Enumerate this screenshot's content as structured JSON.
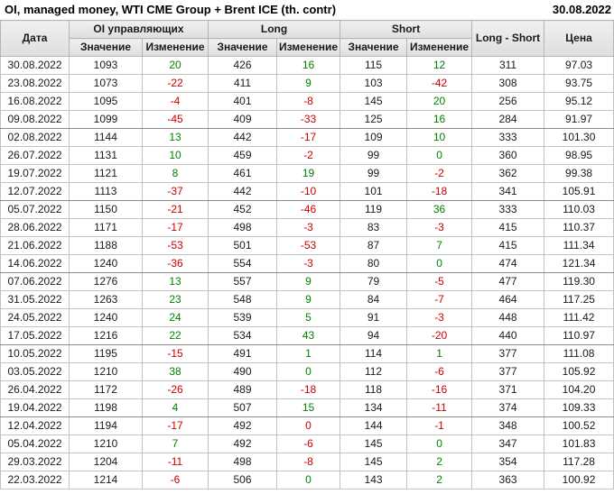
{
  "title": "OI, managed money, WTI CME Group + Brent ICE (th. contr)",
  "report_date": "30.08.2022",
  "colors": {
    "positive_change": "#008000",
    "negative_change": "#cc0000",
    "header_background": "#e8e8e8"
  },
  "table": {
    "header": {
      "date": "Дата",
      "oi_group": "OI управляющих",
      "long_group": "Long",
      "short_group": "Short",
      "value": "Значение",
      "change": "Изменение",
      "long_short": "Long - Short",
      "price": "Цена"
    },
    "rows": [
      {
        "date": "30.08.2022",
        "oi": "1093",
        "oi_chg": "20",
        "oi_chg_sign": "pos",
        "long": "426",
        "long_chg": "16",
        "long_chg_sign": "pos",
        "short": "115",
        "short_chg": "12",
        "short_chg_sign": "pos",
        "long_short": "311",
        "price": "97.03"
      },
      {
        "date": "23.08.2022",
        "oi": "1073",
        "oi_chg": "-22",
        "oi_chg_sign": "neg",
        "long": "411",
        "long_chg": "9",
        "long_chg_sign": "pos",
        "short": "103",
        "short_chg": "-42",
        "short_chg_sign": "neg",
        "long_short": "308",
        "price": "93.75"
      },
      {
        "date": "16.08.2022",
        "oi": "1095",
        "oi_chg": "-4",
        "oi_chg_sign": "neg",
        "long": "401",
        "long_chg": "-8",
        "long_chg_sign": "neg",
        "short": "145",
        "short_chg": "20",
        "short_chg_sign": "pos",
        "long_short": "256",
        "price": "95.12"
      },
      {
        "date": "09.08.2022",
        "oi": "1099",
        "oi_chg": "-45",
        "oi_chg_sign": "neg",
        "long": "409",
        "long_chg": "-33",
        "long_chg_sign": "neg",
        "short": "125",
        "short_chg": "16",
        "short_chg_sign": "pos",
        "long_short": "284",
        "price": "91.97"
      },
      {
        "date": "02.08.2022",
        "oi": "1144",
        "oi_chg": "13",
        "oi_chg_sign": "pos",
        "long": "442",
        "long_chg": "-17",
        "long_chg_sign": "neg",
        "short": "109",
        "short_chg": "10",
        "short_chg_sign": "pos",
        "long_short": "333",
        "price": "101.30"
      },
      {
        "date": "26.07.2022",
        "oi": "1131",
        "oi_chg": "10",
        "oi_chg_sign": "pos",
        "long": "459",
        "long_chg": "-2",
        "long_chg_sign": "neg",
        "short": "99",
        "short_chg": "0",
        "short_chg_sign": "pos",
        "long_short": "360",
        "price": "98.95"
      },
      {
        "date": "19.07.2022",
        "oi": "1121",
        "oi_chg": "8",
        "oi_chg_sign": "pos",
        "long": "461",
        "long_chg": "19",
        "long_chg_sign": "pos",
        "short": "99",
        "short_chg": "-2",
        "short_chg_sign": "neg",
        "long_short": "362",
        "price": "99.38"
      },
      {
        "date": "12.07.2022",
        "oi": "1113",
        "oi_chg": "-37",
        "oi_chg_sign": "neg",
        "long": "442",
        "long_chg": "-10",
        "long_chg_sign": "neg",
        "short": "101",
        "short_chg": "-18",
        "short_chg_sign": "neg",
        "long_short": "341",
        "price": "105.91"
      },
      {
        "date": "05.07.2022",
        "oi": "1150",
        "oi_chg": "-21",
        "oi_chg_sign": "neg",
        "long": "452",
        "long_chg": "-46",
        "long_chg_sign": "neg",
        "short": "119",
        "short_chg": "36",
        "short_chg_sign": "pos",
        "long_short": "333",
        "price": "110.03"
      },
      {
        "date": "28.06.2022",
        "oi": "1171",
        "oi_chg": "-17",
        "oi_chg_sign": "neg",
        "long": "498",
        "long_chg": "-3",
        "long_chg_sign": "neg",
        "short": "83",
        "short_chg": "-3",
        "short_chg_sign": "neg",
        "long_short": "415",
        "price": "110.37"
      },
      {
        "date": "21.06.2022",
        "oi": "1188",
        "oi_chg": "-53",
        "oi_chg_sign": "neg",
        "long": "501",
        "long_chg": "-53",
        "long_chg_sign": "neg",
        "short": "87",
        "short_chg": "7",
        "short_chg_sign": "pos",
        "long_short": "415",
        "price": "111.34"
      },
      {
        "date": "14.06.2022",
        "oi": "1240",
        "oi_chg": "-36",
        "oi_chg_sign": "neg",
        "long": "554",
        "long_chg": "-3",
        "long_chg_sign": "neg",
        "short": "80",
        "short_chg": "0",
        "short_chg_sign": "pos",
        "long_short": "474",
        "price": "121.34"
      },
      {
        "date": "07.06.2022",
        "oi": "1276",
        "oi_chg": "13",
        "oi_chg_sign": "pos",
        "long": "557",
        "long_chg": "9",
        "long_chg_sign": "pos",
        "short": "79",
        "short_chg": "-5",
        "short_chg_sign": "neg",
        "long_short": "477",
        "price": "119.30"
      },
      {
        "date": "31.05.2022",
        "oi": "1263",
        "oi_chg": "23",
        "oi_chg_sign": "pos",
        "long": "548",
        "long_chg": "9",
        "long_chg_sign": "pos",
        "short": "84",
        "short_chg": "-7",
        "short_chg_sign": "neg",
        "long_short": "464",
        "price": "117.25"
      },
      {
        "date": "24.05.2022",
        "oi": "1240",
        "oi_chg": "24",
        "oi_chg_sign": "pos",
        "long": "539",
        "long_chg": "5",
        "long_chg_sign": "pos",
        "short": "91",
        "short_chg": "-3",
        "short_chg_sign": "neg",
        "long_short": "448",
        "price": "111.42"
      },
      {
        "date": "17.05.2022",
        "oi": "1216",
        "oi_chg": "22",
        "oi_chg_sign": "pos",
        "long": "534",
        "long_chg": "43",
        "long_chg_sign": "pos",
        "short": "94",
        "short_chg": "-20",
        "short_chg_sign": "neg",
        "long_short": "440",
        "price": "110.97"
      },
      {
        "date": "10.05.2022",
        "oi": "1195",
        "oi_chg": "-15",
        "oi_chg_sign": "neg",
        "long": "491",
        "long_chg": "1",
        "long_chg_sign": "pos",
        "short": "114",
        "short_chg": "1",
        "short_chg_sign": "pos",
        "long_short": "377",
        "price": "111.08"
      },
      {
        "date": "03.05.2022",
        "oi": "1210",
        "oi_chg": "38",
        "oi_chg_sign": "pos",
        "long": "490",
        "long_chg": "0",
        "long_chg_sign": "pos",
        "short": "112",
        "short_chg": "-6",
        "short_chg_sign": "neg",
        "long_short": "377",
        "price": "105.92"
      },
      {
        "date": "26.04.2022",
        "oi": "1172",
        "oi_chg": "-26",
        "oi_chg_sign": "neg",
        "long": "489",
        "long_chg": "-18",
        "long_chg_sign": "neg",
        "short": "118",
        "short_chg": "-16",
        "short_chg_sign": "neg",
        "long_short": "371",
        "price": "104.20"
      },
      {
        "date": "19.04.2022",
        "oi": "1198",
        "oi_chg": "4",
        "oi_chg_sign": "pos",
        "long": "507",
        "long_chg": "15",
        "long_chg_sign": "pos",
        "short": "134",
        "short_chg": "-11",
        "short_chg_sign": "neg",
        "long_short": "374",
        "price": "109.33"
      },
      {
        "date": "12.04.2022",
        "oi": "1194",
        "oi_chg": "-17",
        "oi_chg_sign": "neg",
        "long": "492",
        "long_chg": "0",
        "long_chg_sign": "neg",
        "short": "144",
        "short_chg": "-1",
        "short_chg_sign": "neg",
        "long_short": "348",
        "price": "100.52"
      },
      {
        "date": "05.04.2022",
        "oi": "1210",
        "oi_chg": "7",
        "oi_chg_sign": "pos",
        "long": "492",
        "long_chg": "-6",
        "long_chg_sign": "neg",
        "short": "145",
        "short_chg": "0",
        "short_chg_sign": "pos",
        "long_short": "347",
        "price": "101.83"
      },
      {
        "date": "29.03.2022",
        "oi": "1204",
        "oi_chg": "-11",
        "oi_chg_sign": "neg",
        "long": "498",
        "long_chg": "-8",
        "long_chg_sign": "neg",
        "short": "145",
        "short_chg": "2",
        "short_chg_sign": "pos",
        "long_short": "354",
        "price": "117.28"
      },
      {
        "date": "22.03.2022",
        "oi": "1214",
        "oi_chg": "-6",
        "oi_chg_sign": "neg",
        "long": "506",
        "long_chg": "0",
        "long_chg_sign": "pos",
        "short": "143",
        "short_chg": "2",
        "short_chg_sign": "pos",
        "long_short": "363",
        "price": "100.92"
      }
    ]
  }
}
